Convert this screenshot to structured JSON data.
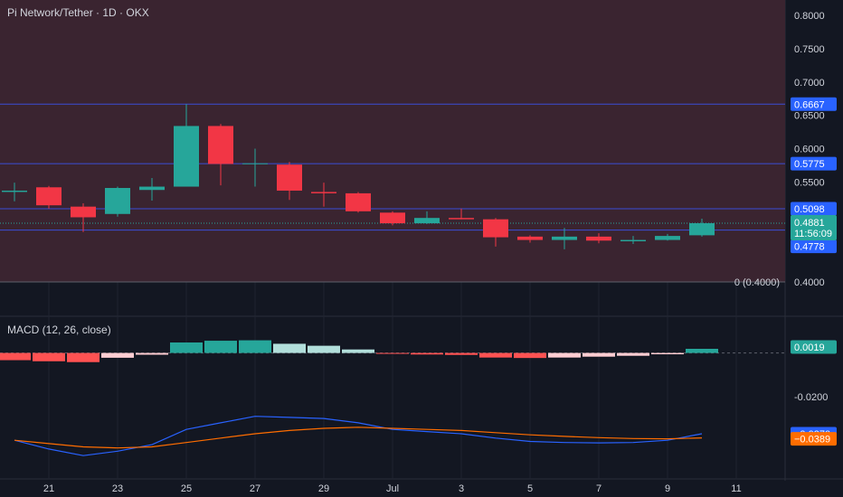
{
  "header": {
    "title": "Pi Network/Tether · 1D · OKX"
  },
  "macd_header": {
    "title": "MACD (12, 26, close)"
  },
  "colors": {
    "bg": "#131722",
    "zone": "#3a2430",
    "up": "#26a69a",
    "down": "#f23645",
    "hline": "#3b4dd6",
    "axis_tag": "#2962ff",
    "grid": "#2a2e39",
    "hist_up_strong": "#26a69a",
    "hist_up_weak": "#b2dfdb",
    "hist_down_strong": "#ff5252",
    "hist_down_weak": "#ffcdd2",
    "macd_line": "#2962ff",
    "signal_line": "#ff6d00"
  },
  "chart_data": [
    {
      "type": "candlestick",
      "title": "Pi Network/Tether · 1D · OKX",
      "ylim": [
        0.38,
        0.82
      ],
      "y_ticks": [
        "0.8000",
        "0.7500",
        "0.7000",
        "0.6500",
        "0.6000",
        "0.5500",
        "0.5000",
        "0.4500",
        "0.4000"
      ],
      "y_tick_values": [
        0.8,
        0.75,
        0.7,
        0.65,
        0.6,
        0.55,
        0.5,
        0.45,
        0.4
      ],
      "x_ticks": [
        "21",
        "23",
        "25",
        "27",
        "29",
        "Jul",
        "3",
        "5",
        "7",
        "9",
        "11"
      ],
      "x_tick_days": [
        21,
        23,
        25,
        27,
        29,
        31,
        33,
        35,
        37,
        39,
        41
      ],
      "candles": [
        {
          "day": 20,
          "open": 0.535,
          "high": 0.549,
          "low": 0.521,
          "close": 0.537
        },
        {
          "day": 21,
          "open": 0.542,
          "high": 0.544,
          "low": 0.51,
          "close": 0.515
        },
        {
          "day": 22,
          "open": 0.513,
          "high": 0.518,
          "low": 0.475,
          "close": 0.497
        },
        {
          "day": 23,
          "open": 0.502,
          "high": 0.543,
          "low": 0.498,
          "close": 0.541
        },
        {
          "day": 24,
          "open": 0.538,
          "high": 0.556,
          "low": 0.522,
          "close": 0.543
        },
        {
          "day": 25,
          "open": 0.543,
          "high": 0.6667,
          "low": 0.543,
          "close": 0.634
        },
        {
          "day": 26,
          "open": 0.634,
          "high": 0.637,
          "low": 0.545,
          "close": 0.577
        },
        {
          "day": 27,
          "open": 0.577,
          "high": 0.6,
          "low": 0.543,
          "close": 0.578
        },
        {
          "day": 28,
          "open": 0.576,
          "high": 0.58,
          "low": 0.523,
          "close": 0.537
        },
        {
          "day": 29,
          "open": 0.535,
          "high": 0.549,
          "low": 0.513,
          "close": 0.533
        },
        {
          "day": 30,
          "open": 0.533,
          "high": 0.535,
          "low": 0.504,
          "close": 0.506
        },
        {
          "day": 31,
          "open": 0.504,
          "high": 0.506,
          "low": 0.485,
          "close": 0.488
        },
        {
          "day": 32,
          "open": 0.488,
          "high": 0.506,
          "low": 0.487,
          "close": 0.496
        },
        {
          "day": 33,
          "open": 0.496,
          "high": 0.51,
          "low": 0.494,
          "close": 0.494
        },
        {
          "day": 34,
          "open": 0.494,
          "high": 0.496,
          "low": 0.453,
          "close": 0.467
        },
        {
          "day": 35,
          "open": 0.468,
          "high": 0.47,
          "low": 0.459,
          "close": 0.463
        },
        {
          "day": 36,
          "open": 0.463,
          "high": 0.481,
          "low": 0.449,
          "close": 0.468
        },
        {
          "day": 37,
          "open": 0.468,
          "high": 0.473,
          "low": 0.458,
          "close": 0.462
        },
        {
          "day": 38,
          "open": 0.461,
          "high": 0.469,
          "low": 0.457,
          "close": 0.463
        },
        {
          "day": 39,
          "open": 0.463,
          "high": 0.472,
          "low": 0.462,
          "close": 0.469
        },
        {
          "day": 40,
          "open": 0.47,
          "high": 0.495,
          "low": 0.468,
          "close": 0.4881
        }
      ],
      "horizontal_lines": [
        {
          "value": 0.6667,
          "label": "0.6667"
        },
        {
          "value": 0.5775,
          "label": "0.5775"
        },
        {
          "value": 0.5098,
          "label": "0.5098"
        },
        {
          "value": 0.4778,
          "label": "0.4778"
        }
      ],
      "last_price": {
        "value": 0.4881,
        "label": "0.4881",
        "countdown": "11:56:09"
      },
      "zero_line": {
        "value": 0.4,
        "label": "0 (0.4000)"
      }
    },
    {
      "type": "macd",
      "title": "MACD (12, 26, close)",
      "ylim": [
        -0.052,
        0.006
      ],
      "y_ticks": [
        "-0.0200"
      ],
      "y_tick_values": [
        -0.02
      ],
      "histogram": [
        {
          "day": 20,
          "value": -0.0033
        },
        {
          "day": 21,
          "value": -0.0038
        },
        {
          "day": 22,
          "value": -0.0042
        },
        {
          "day": 23,
          "value": -0.0022
        },
        {
          "day": 24,
          "value": -0.0008
        },
        {
          "day": 25,
          "value": 0.0048
        },
        {
          "day": 26,
          "value": 0.0056
        },
        {
          "day": 27,
          "value": 0.0058
        },
        {
          "day": 28,
          "value": 0.0042
        },
        {
          "day": 29,
          "value": 0.0033
        },
        {
          "day": 30,
          "value": 0.0016
        },
        {
          "day": 31,
          "value": -0.0004
        },
        {
          "day": 32,
          "value": -0.0007
        },
        {
          "day": 33,
          "value": -0.0009
        },
        {
          "day": 34,
          "value": -0.0021
        },
        {
          "day": 35,
          "value": -0.0023
        },
        {
          "day": 36,
          "value": -0.0021
        },
        {
          "day": 37,
          "value": -0.0017
        },
        {
          "day": 38,
          "value": -0.0013
        },
        {
          "day": 39,
          "value": -0.0006
        },
        {
          "day": 40,
          "value": 0.0019
        }
      ],
      "macd": [
        {
          "day": 20,
          "value": -0.04
        },
        {
          "day": 21,
          "value": -0.044
        },
        {
          "day": 22,
          "value": -0.047
        },
        {
          "day": 23,
          "value": -0.045
        },
        {
          "day": 24,
          "value": -0.042
        },
        {
          "day": 25,
          "value": -0.035
        },
        {
          "day": 26,
          "value": -0.032
        },
        {
          "day": 27,
          "value": -0.029
        },
        {
          "day": 28,
          "value": -0.0295
        },
        {
          "day": 29,
          "value": -0.03
        },
        {
          "day": 30,
          "value": -0.032
        },
        {
          "day": 31,
          "value": -0.035
        },
        {
          "day": 32,
          "value": -0.036
        },
        {
          "day": 33,
          "value": -0.037
        },
        {
          "day": 34,
          "value": -0.039
        },
        {
          "day": 35,
          "value": -0.0405
        },
        {
          "day": 36,
          "value": -0.041
        },
        {
          "day": 37,
          "value": -0.0412
        },
        {
          "day": 38,
          "value": -0.041
        },
        {
          "day": 39,
          "value": -0.04
        },
        {
          "day": 40,
          "value": -0.037
        }
      ],
      "signal": [
        {
          "day": 20,
          "value": -0.04
        },
        {
          "day": 21,
          "value": -0.0415
        },
        {
          "day": 22,
          "value": -0.043
        },
        {
          "day": 23,
          "value": -0.0435
        },
        {
          "day": 24,
          "value": -0.043
        },
        {
          "day": 25,
          "value": -0.041
        },
        {
          "day": 26,
          "value": -0.039
        },
        {
          "day": 27,
          "value": -0.037
        },
        {
          "day": 28,
          "value": -0.0355
        },
        {
          "day": 29,
          "value": -0.0345
        },
        {
          "day": 30,
          "value": -0.034
        },
        {
          "day": 31,
          "value": -0.0345
        },
        {
          "day": 32,
          "value": -0.035
        },
        {
          "day": 33,
          "value": -0.0355
        },
        {
          "day": 34,
          "value": -0.0365
        },
        {
          "day": 35,
          "value": -0.0375
        },
        {
          "day": 36,
          "value": -0.0382
        },
        {
          "day": 37,
          "value": -0.0388
        },
        {
          "day": 38,
          "value": -0.0392
        },
        {
          "day": 39,
          "value": -0.0393
        },
        {
          "day": 40,
          "value": -0.0389
        }
      ],
      "tags": [
        {
          "series": "histogram",
          "value": 0.0019,
          "label": "0.0019"
        },
        {
          "series": "macd",
          "value": -0.037,
          "label": "−0.0370"
        },
        {
          "series": "signal",
          "value": -0.0389,
          "label": "−0.0389"
        }
      ]
    }
  ]
}
